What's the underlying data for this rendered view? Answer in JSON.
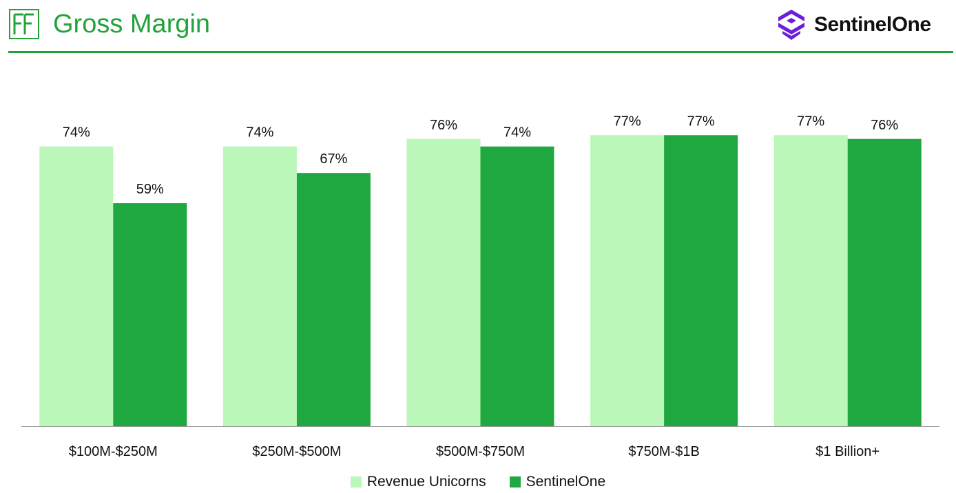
{
  "header": {
    "title": "Gross Margin",
    "brand_name": "SentinelOne"
  },
  "colors": {
    "accent": "#22a33a",
    "series_light": "#baf7b9",
    "series_dark": "#1fa83f",
    "brand_purple": "#6b1fd6"
  },
  "chart_data": {
    "type": "bar",
    "title": "Gross Margin",
    "xlabel": "",
    "ylabel": "",
    "ylim": [
      0,
      80
    ],
    "grid": false,
    "legend_position": "bottom-center",
    "categories": [
      "$100M-$250M",
      "$250M-$500M",
      "$500M-$750M",
      "$750M-$1B",
      "$1 Billion+"
    ],
    "series": [
      {
        "name": "Revenue Unicorns",
        "values": [
          74,
          74,
          76,
          77,
          77
        ],
        "labels": [
          "74%",
          "74%",
          "76%",
          "77%",
          "77%"
        ],
        "color": "#baf7b9"
      },
      {
        "name": "SentinelOne",
        "values": [
          59,
          67,
          74,
          77,
          76
        ],
        "labels": [
          "59%",
          "67%",
          "74%",
          "77%",
          "76%"
        ],
        "color": "#1fa83f"
      }
    ]
  }
}
